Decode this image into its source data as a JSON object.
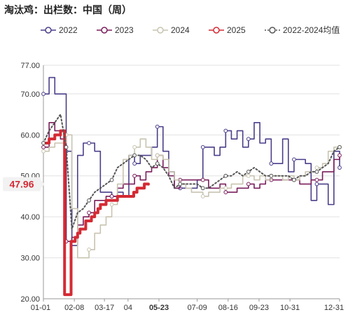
{
  "title": "淘汰鸡：出栏数：中国（周）",
  "colors": {
    "2022": "#4b3f8a",
    "2023": "#7a1f5c",
    "2024": "#c8c4b0",
    "2025": "#d42a34",
    "avg": "#555555",
    "grid": "#e2e2e2",
    "callout_bg": "#f2f2f2",
    "callout_text": "#d42a34"
  },
  "chart_data": {
    "type": "line",
    "title": "淘汰鸡：出栏数：中国（周）",
    "xlabel": "",
    "ylabel": "",
    "ylim": [
      20,
      80
    ],
    "y_ticks": [
      "20.00",
      "30.00",
      "40.00",
      "50.00",
      "60.00",
      "70.00",
      "77.00"
    ],
    "y_tick_values": [
      20,
      30,
      40,
      50,
      60,
      70,
      77
    ],
    "x_ticks": [
      "01-01",
      "02-08",
      "03-17",
      "04",
      "05-23",
      "07-09",
      "08-16",
      "09-23",
      "10-31",
      "12-31"
    ],
    "x_tick_days": [
      1,
      39,
      76,
      105,
      143,
      190,
      228,
      266,
      304,
      365
    ],
    "highlight_tick": "05-23",
    "last_value_label": "47.96",
    "last_value": 47.96,
    "grid": true,
    "legend_position": "top",
    "series": [
      {
        "name": "2022",
        "key": "2022",
        "step": true,
        "points": [
          [
            1,
            70
          ],
          [
            8,
            74
          ],
          [
            15,
            70
          ],
          [
            22,
            70
          ],
          [
            29,
            56
          ],
          [
            36,
            33
          ],
          [
            43,
            55
          ],
          [
            50,
            58
          ],
          [
            57,
            58
          ],
          [
            64,
            56
          ],
          [
            71,
            46
          ],
          [
            78,
            46
          ],
          [
            85,
            45
          ],
          [
            92,
            46
          ],
          [
            99,
            45
          ],
          [
            106,
            55
          ],
          [
            113,
            53
          ],
          [
            120,
            55
          ],
          [
            127,
            55
          ],
          [
            134,
            57
          ],
          [
            141,
            62
          ],
          [
            148,
            56
          ],
          [
            155,
            51
          ],
          [
            162,
            47
          ],
          [
            169,
            47
          ],
          [
            176,
            47
          ],
          [
            183,
            47
          ],
          [
            190,
            49
          ],
          [
            197,
            57
          ],
          [
            204,
            57
          ],
          [
            211,
            55
          ],
          [
            218,
            57
          ],
          [
            225,
            61
          ],
          [
            232,
            59
          ],
          [
            239,
            61
          ],
          [
            246,
            57
          ],
          [
            253,
            59
          ],
          [
            260,
            63
          ],
          [
            267,
            58
          ],
          [
            274,
            59
          ],
          [
            281,
            53
          ],
          [
            288,
            53
          ],
          [
            295,
            59
          ],
          [
            302,
            51
          ],
          [
            309,
            54
          ],
          [
            316,
            54
          ],
          [
            323,
            53
          ],
          [
            330,
            44
          ],
          [
            337,
            48
          ],
          [
            344,
            48
          ],
          [
            351,
            43
          ],
          [
            358,
            56
          ],
          [
            365,
            52
          ]
        ]
      },
      {
        "name": "2023",
        "key": "2023",
        "step": true,
        "points": [
          [
            1,
            57
          ],
          [
            8,
            63
          ],
          [
            15,
            61
          ],
          [
            22,
            59
          ],
          [
            29,
            34
          ],
          [
            36,
            35
          ],
          [
            43,
            38
          ],
          [
            50,
            40
          ],
          [
            57,
            41
          ],
          [
            64,
            44
          ],
          [
            71,
            44
          ],
          [
            78,
            45
          ],
          [
            85,
            45
          ],
          [
            92,
            47
          ],
          [
            99,
            48
          ],
          [
            106,
            48
          ],
          [
            113,
            50
          ],
          [
            120,
            49
          ],
          [
            127,
            51
          ],
          [
            134,
            52
          ],
          [
            141,
            55
          ],
          [
            148,
            52
          ],
          [
            155,
            50
          ],
          [
            162,
            47
          ],
          [
            169,
            49
          ],
          [
            176,
            49
          ],
          [
            183,
            49
          ],
          [
            190,
            49
          ],
          [
            197,
            49
          ],
          [
            204,
            47
          ],
          [
            211,
            47
          ],
          [
            218,
            48
          ],
          [
            225,
            46
          ],
          [
            232,
            46
          ],
          [
            239,
            47
          ],
          [
            246,
            47
          ],
          [
            253,
            48
          ],
          [
            260,
            47
          ],
          [
            267,
            48
          ],
          [
            274,
            49
          ],
          [
            281,
            49
          ],
          [
            288,
            49
          ],
          [
            295,
            49
          ],
          [
            302,
            49
          ],
          [
            309,
            49
          ],
          [
            316,
            48
          ],
          [
            323,
            48
          ],
          [
            330,
            49
          ],
          [
            337,
            49
          ],
          [
            344,
            51
          ],
          [
            351,
            51
          ],
          [
            358,
            54
          ],
          [
            365,
            55
          ]
        ]
      },
      {
        "name": "2024",
        "key": "2024",
        "step": true,
        "points": [
          [
            1,
            56
          ],
          [
            8,
            57
          ],
          [
            15,
            58
          ],
          [
            22,
            58
          ],
          [
            29,
            60
          ],
          [
            36,
            42
          ],
          [
            43,
            30
          ],
          [
            50,
            30
          ],
          [
            57,
            32
          ],
          [
            64,
            36
          ],
          [
            71,
            38
          ],
          [
            78,
            40
          ],
          [
            85,
            43
          ],
          [
            92,
            48
          ],
          [
            99,
            54
          ],
          [
            106,
            55
          ],
          [
            113,
            57
          ],
          [
            120,
            59
          ],
          [
            127,
            57
          ],
          [
            134,
            54
          ],
          [
            141,
            55
          ],
          [
            148,
            54
          ],
          [
            155,
            51
          ],
          [
            162,
            49
          ],
          [
            169,
            48
          ],
          [
            176,
            47
          ],
          [
            183,
            46
          ],
          [
            190,
            46
          ],
          [
            197,
            45
          ],
          [
            204,
            46
          ],
          [
            211,
            46
          ],
          [
            218,
            47
          ],
          [
            225,
            47
          ],
          [
            232,
            48
          ],
          [
            239,
            48
          ],
          [
            246,
            50
          ],
          [
            253,
            50
          ],
          [
            260,
            49
          ],
          [
            267,
            50
          ],
          [
            274,
            49
          ],
          [
            281,
            50
          ],
          [
            288,
            50
          ],
          [
            295,
            49
          ],
          [
            302,
            50
          ],
          [
            309,
            49
          ],
          [
            316,
            50
          ],
          [
            323,
            51
          ],
          [
            330,
            51
          ],
          [
            337,
            52
          ],
          [
            344,
            53
          ],
          [
            351,
            56
          ],
          [
            358,
            57
          ],
          [
            365,
            57
          ]
        ]
      },
      {
        "name": "2025",
        "key": "2025",
        "step": true,
        "points": [
          [
            1,
            58
          ],
          [
            8,
            59
          ],
          [
            15,
            60
          ],
          [
            22,
            61
          ],
          [
            25,
            61
          ],
          [
            27,
            21
          ],
          [
            29,
            21
          ],
          [
            31,
            21
          ],
          [
            33,
            21
          ],
          [
            35,
            34
          ],
          [
            40,
            35
          ],
          [
            43,
            36
          ],
          [
            46,
            37
          ],
          [
            50,
            37
          ],
          [
            53,
            39
          ],
          [
            57,
            39
          ],
          [
            60,
            40
          ],
          [
            64,
            41
          ],
          [
            68,
            42
          ],
          [
            71,
            43
          ],
          [
            75,
            43
          ],
          [
            78,
            44
          ],
          [
            82,
            44
          ],
          [
            85,
            44
          ],
          [
            88,
            44
          ],
          [
            92,
            45
          ],
          [
            96,
            45
          ],
          [
            100,
            45
          ],
          [
            104,
            45
          ],
          [
            108,
            45
          ],
          [
            112,
            46
          ],
          [
            116,
            47
          ],
          [
            120,
            47
          ],
          [
            125,
            48
          ],
          [
            130,
            47.96
          ]
        ]
      },
      {
        "name": "2022-2024均值",
        "key": "avg",
        "step": false,
        "dashed": true,
        "points": [
          [
            1,
            58
          ],
          [
            8,
            61
          ],
          [
            15,
            63
          ],
          [
            22,
            65
          ],
          [
            29,
            57
          ],
          [
            36,
            37
          ],
          [
            43,
            41
          ],
          [
            50,
            42
          ],
          [
            57,
            44
          ],
          [
            64,
            46
          ],
          [
            71,
            47
          ],
          [
            78,
            48
          ],
          [
            85,
            49
          ],
          [
            92,
            52
          ],
          [
            99,
            53
          ],
          [
            106,
            54
          ],
          [
            113,
            55
          ],
          [
            120,
            55
          ],
          [
            127,
            54
          ],
          [
            134,
            52
          ],
          [
            141,
            53
          ],
          [
            148,
            52
          ],
          [
            155,
            50
          ],
          [
            162,
            47
          ],
          [
            169,
            48
          ],
          [
            176,
            48
          ],
          [
            183,
            48
          ],
          [
            190,
            48
          ],
          [
            197,
            47
          ],
          [
            204,
            47
          ],
          [
            211,
            48
          ],
          [
            218,
            49
          ],
          [
            225,
            50
          ],
          [
            232,
            50
          ],
          [
            239,
            51
          ],
          [
            246,
            50
          ],
          [
            253,
            51
          ],
          [
            260,
            52
          ],
          [
            267,
            51
          ],
          [
            274,
            50
          ],
          [
            281,
            50
          ],
          [
            288,
            50
          ],
          [
            295,
            50
          ],
          [
            302,
            50
          ],
          [
            309,
            49
          ],
          [
            316,
            50
          ],
          [
            323,
            50
          ],
          [
            330,
            51
          ],
          [
            337,
            51
          ],
          [
            344,
            52
          ],
          [
            351,
            53
          ],
          [
            358,
            56
          ],
          [
            365,
            57
          ]
        ]
      }
    ]
  }
}
